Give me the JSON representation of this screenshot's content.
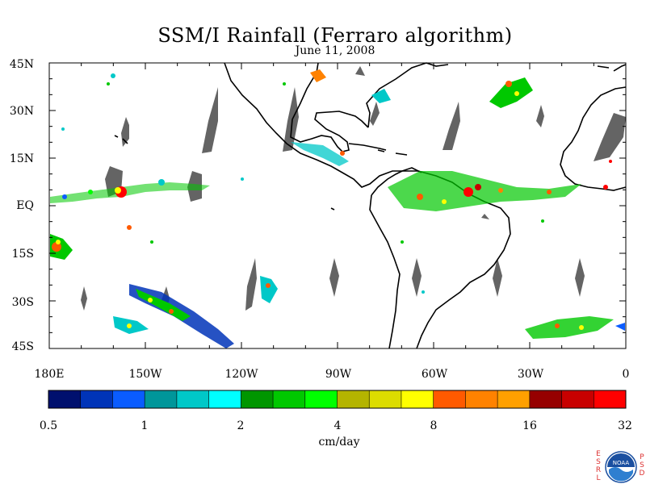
{
  "map": {
    "title": "SSM/I Rainfall (Ferraro algorithm)",
    "subtitle": "June 11, 2008",
    "lat_ticks": [
      "45N",
      "30N",
      "15N",
      "EQ",
      "15S",
      "30S",
      "45S"
    ],
    "lon_ticks": [
      "180E",
      "150W",
      "120W",
      "90W",
      "60W",
      "30W",
      "0"
    ],
    "extent": {
      "lon_range": [
        -180,
        0
      ],
      "lat_range": [
        -45,
        45
      ]
    }
  },
  "legend": {
    "ticks": [
      "0.5",
      "1",
      "2",
      "4",
      "8",
      "16",
      "32"
    ],
    "units": "cm/day",
    "colors": [
      "#00106e",
      "#0034b8",
      "#0a5cff",
      "#00969a",
      "#00c8c8",
      "#00ffff",
      "#009600",
      "#00c800",
      "#00ff00",
      "#b4b400",
      "#dcdc00",
      "#ffff00",
      "#ff5a00",
      "#ff8200",
      "#ffa000",
      "#960000",
      "#c80000",
      "#ff0000"
    ]
  },
  "logo": {
    "left_letters": [
      "E",
      "S",
      "R",
      "L"
    ],
    "center_text": "NOAA",
    "right_letters": [
      "P",
      "S",
      "D"
    ]
  },
  "colors": {
    "land_outline": "#000000",
    "missing_data": "#646464"
  }
}
